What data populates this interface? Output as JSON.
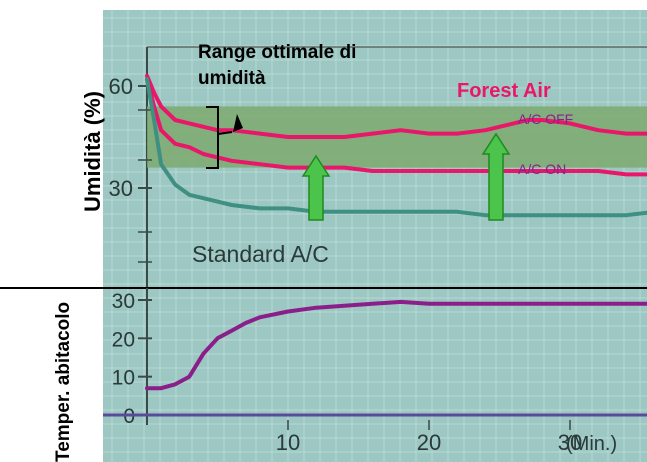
{
  "chart_data": [
    {
      "type": "line",
      "title": "",
      "xlabel": "",
      "ylabel": "Umidità (%)",
      "x": [
        0,
        0.5,
        1,
        2,
        3,
        4,
        5,
        6,
        8,
        10,
        12,
        14,
        16,
        18,
        20,
        22,
        24,
        26,
        27,
        28,
        30,
        32,
        34,
        36,
        37
      ],
      "ylim": [
        10,
        70
      ],
      "yticks": [
        30,
        60
      ],
      "series": [
        {
          "name": "A/C OFF",
          "color": "#e8176a",
          "values": [
            63,
            58,
            54,
            50,
            49,
            48,
            47,
            47,
            46,
            45,
            45,
            45,
            46,
            47,
            46,
            46,
            47,
            49,
            50,
            50,
            49,
            47,
            46,
            46,
            46
          ]
        },
        {
          "name": "A/C ON",
          "color": "#e8176a",
          "values": [
            62,
            54,
            47,
            43,
            42,
            40,
            39,
            38,
            37,
            36,
            36,
            36,
            35,
            35,
            35,
            35,
            35,
            35,
            35,
            35,
            35,
            35,
            34,
            34,
            35
          ]
        },
        {
          "name": "Standard A/C",
          "color": "#3f8f83",
          "values": [
            62,
            50,
            37,
            31,
            28,
            27,
            26,
            25,
            24,
            24,
            23,
            23,
            23,
            23,
            23,
            23,
            22,
            22,
            22,
            22,
            22,
            22,
            22,
            23,
            23
          ]
        }
      ],
      "band": [
        36,
        54
      ],
      "annotations": {
        "range_title": "Range ottimale di umidità",
        "forest_air": "Forest Air",
        "ac_off": "A/C OFF",
        "ac_on": "A/C ON",
        "standard": "Standard A/C"
      },
      "grid": true
    },
    {
      "type": "line",
      "title": "",
      "xlabel": "(Min.)",
      "ylabel": "Temper. abitacolo",
      "x": [
        0,
        1,
        2,
        3,
        4,
        5,
        6,
        7,
        8,
        10,
        12,
        14,
        16,
        18,
        20,
        22,
        24,
        26,
        28,
        30,
        32,
        34,
        36,
        37
      ],
      "xticks": [
        10,
        20,
        30
      ],
      "ylim": [
        -2,
        35
      ],
      "yticks": [
        0,
        10,
        20,
        30
      ],
      "series": [
        {
          "name": "",
          "color": "#8a1f8a",
          "values": [
            7,
            7,
            8,
            10,
            16,
            20,
            22,
            24,
            25.5,
            27,
            28,
            28.5,
            29,
            29.5,
            29,
            29,
            29,
            29,
            29,
            29,
            29,
            29,
            29,
            29
          ]
        }
      ],
      "baseline": 0,
      "grid": true
    }
  ],
  "colors": {
    "plot_bg": "#9cc7c2",
    "grid": "#b6d8d4",
    "band": "#7ca96e",
    "pink": "#e8176a",
    "teal": "#3f8f83",
    "purple": "#8a1f8a",
    "arrow_fill": "#4cc44c",
    "arrow_stroke": "#1e8a1e"
  }
}
